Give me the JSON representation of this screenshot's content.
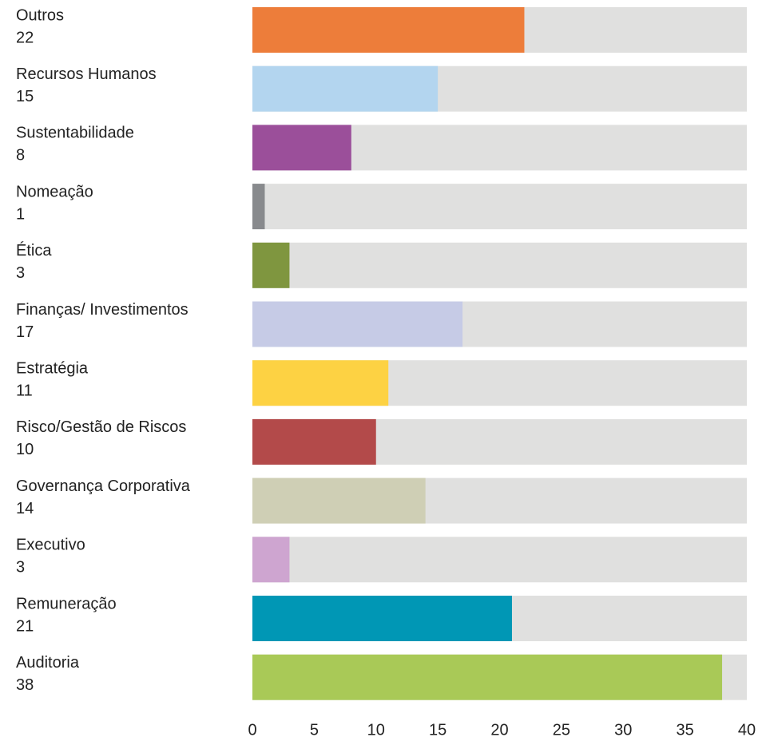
{
  "chart_data": {
    "type": "bar",
    "orientation": "horizontal",
    "categories": [
      "Outros",
      "Recursos Humanos",
      "Sustentabilidade",
      "Nomeação",
      "Ética",
      "Finanças/ Investimentos",
      "Estratégia",
      "Risco/Gestão de Riscos",
      "Governança Corporativa",
      "Executivo",
      "Remuneração",
      "Auditoria"
    ],
    "values": [
      22,
      15,
      8,
      1,
      3,
      17,
      11,
      10,
      14,
      3,
      21,
      38
    ],
    "colors": [
      "#ed7d3a",
      "#b3d5ef",
      "#9b4f9a",
      "#888a8d",
      "#7f963f",
      "#c6cbe6",
      "#fdd243",
      "#b34a4a",
      "#cfcfb5",
      "#cea5d0",
      "#0097b5",
      "#a9c957"
    ],
    "track_color": "#e0e0df",
    "xlim": [
      0,
      40
    ],
    "xticks": [
      0,
      5,
      10,
      15,
      20,
      25,
      30,
      35,
      40
    ]
  }
}
